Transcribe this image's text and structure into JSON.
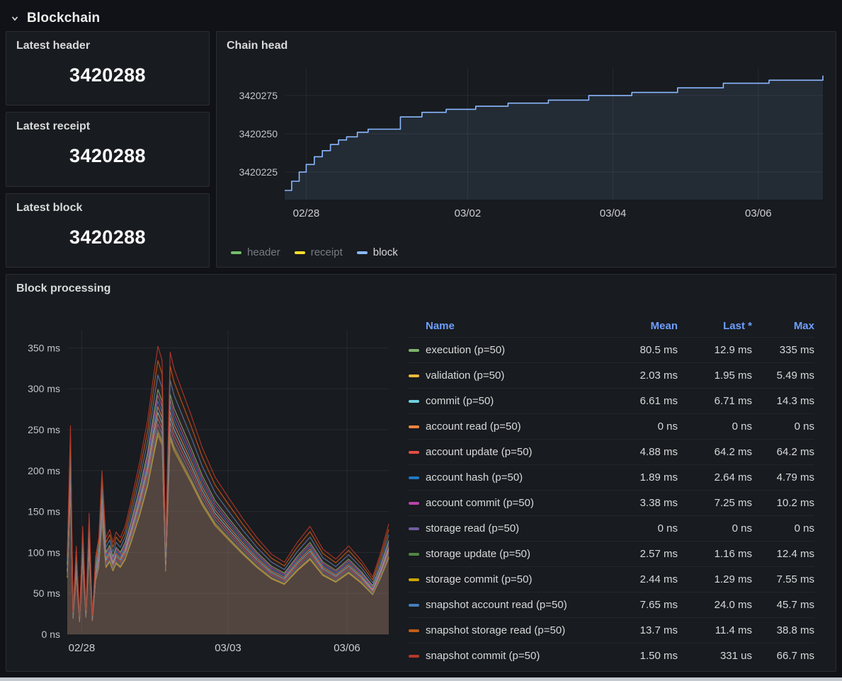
{
  "theme": {
    "background": "#111217",
    "panel_background": "#181b1f",
    "text_primary": "#d8d9da",
    "text_dim": "#767b83",
    "link_blue": "#6e9fff"
  },
  "section": {
    "title": "Blockchain",
    "collapse_icon": "chevron-down"
  },
  "stats": [
    {
      "title": "Latest header",
      "value": "3420288"
    },
    {
      "title": "Latest receipt",
      "value": "3420288"
    },
    {
      "title": "Latest block",
      "value": "3420288"
    }
  ],
  "chain_head": {
    "title": "Chain head",
    "legend": [
      {
        "label": "header",
        "color": "#73BF69",
        "dim": true
      },
      {
        "label": "receipt",
        "color": "#FADE2A",
        "dim": true
      },
      {
        "label": "block",
        "color": "#8AB8FF",
        "dim": false
      }
    ]
  },
  "block_processing": {
    "title": "Block processing",
    "table": {
      "columns": [
        "Name",
        "Mean",
        "Last *",
        "Max"
      ],
      "rows": [
        {
          "name": "execution (p=50)",
          "color": "#7EB26D",
          "mean": "80.5 ms",
          "last": "12.9 ms",
          "max": "335 ms"
        },
        {
          "name": "validation (p=50)",
          "color": "#EAB839",
          "mean": "2.03 ms",
          "last": "1.95 ms",
          "max": "5.49 ms"
        },
        {
          "name": "commit (p=50)",
          "color": "#6ED0E0",
          "mean": "6.61 ms",
          "last": "6.71 ms",
          "max": "14.3 ms"
        },
        {
          "name": "account read (p=50)",
          "color": "#EF843C",
          "mean": "0 ns",
          "last": "0 ns",
          "max": "0 ns"
        },
        {
          "name": "account update (p=50)",
          "color": "#E24D42",
          "mean": "4.88 ms",
          "last": "64.2 ms",
          "max": "64.2 ms"
        },
        {
          "name": "account hash (p=50)",
          "color": "#1F78C1",
          "mean": "1.89 ms",
          "last": "2.64 ms",
          "max": "4.79 ms"
        },
        {
          "name": "account commit (p=50)",
          "color": "#BA43A9",
          "mean": "3.38 ms",
          "last": "7.25 ms",
          "max": "10.2 ms"
        },
        {
          "name": "storage read (p=50)",
          "color": "#705DA0",
          "mean": "0 ns",
          "last": "0 ns",
          "max": "0 ns"
        },
        {
          "name": "storage update (p=50)",
          "color": "#508642",
          "mean": "2.57 ms",
          "last": "1.16 ms",
          "max": "12.4 ms"
        },
        {
          "name": "storage commit (p=50)",
          "color": "#CCA300",
          "mean": "2.44 ms",
          "last": "1.29 ms",
          "max": "7.55 ms"
        },
        {
          "name": "snapshot account read (p=50)",
          "color": "#447EBC",
          "mean": "7.65 ms",
          "last": "24.0 ms",
          "max": "45.7 ms"
        },
        {
          "name": "snapshot storage read (p=50)",
          "color": "#C15C17",
          "mean": "13.7 ms",
          "last": "11.4 ms",
          "max": "38.8 ms"
        },
        {
          "name": "snapshot commit (p=50)",
          "color": "#B5382C",
          "mean": "1.50 ms",
          "last": "331 us",
          "max": "66.7 ms"
        }
      ]
    }
  },
  "chart_data": [
    {
      "type": "line",
      "title": "Chain head",
      "x_axis": "time",
      "ylim": [
        3420207,
        3420293
      ],
      "grid": true,
      "legend_position": "bottom",
      "yticks": [
        {
          "label": "3420225",
          "value": 3420225
        },
        {
          "label": "3420250",
          "value": 3420250
        },
        {
          "label": "3420275",
          "value": 3420275
        }
      ],
      "xticks": [
        {
          "label": "02/28",
          "f": 0.04
        },
        {
          "label": "03/02",
          "f": 0.34
        },
        {
          "label": "03/04",
          "f": 0.61
        },
        {
          "label": "03/06",
          "f": 0.88
        }
      ],
      "series": [
        {
          "name": "block",
          "color": "#8AB8FF",
          "style": "step-after",
          "x": [
            0.0,
            0.013,
            0.027,
            0.04,
            0.055,
            0.07,
            0.085,
            0.1,
            0.115,
            0.135,
            0.155,
            0.18,
            0.215,
            0.255,
            0.3,
            0.355,
            0.415,
            0.49,
            0.565,
            0.645,
            0.73,
            0.815,
            0.9,
            1.0
          ],
          "y": [
            3420213,
            3420219,
            3420225,
            3420230,
            3420235,
            3420239,
            3420243,
            3420246,
            3420248,
            3420251,
            3420253,
            3420253,
            3420261,
            3420264,
            3420266,
            3420268,
            3420270,
            3420272,
            3420275,
            3420277,
            3420280,
            3420283,
            3420285,
            3420288
          ]
        }
      ],
      "note": "header and receipt series coincide with block series"
    },
    {
      "type": "line",
      "title": "Block processing",
      "x_axis": "time",
      "ylim": [
        0,
        372
      ],
      "grid": true,
      "yticks": [
        {
          "label": "0 ns",
          "value": 0
        },
        {
          "label": "50 ms",
          "value": 50
        },
        {
          "label": "100 ms",
          "value": 100
        },
        {
          "label": "150 ms",
          "value": 150
        },
        {
          "label": "200 ms",
          "value": 200
        },
        {
          "label": "250 ms",
          "value": 250
        },
        {
          "label": "300 ms",
          "value": 300
        },
        {
          "label": "350 ms",
          "value": 350
        }
      ],
      "xticks": [
        {
          "label": "02/28",
          "f": 0.045
        },
        {
          "label": "03/03",
          "f": 0.5
        },
        {
          "label": "03/06",
          "f": 0.87
        }
      ],
      "envelope_x": [
        0.0,
        0.01,
        0.018,
        0.028,
        0.038,
        0.048,
        0.058,
        0.068,
        0.078,
        0.088,
        0.098,
        0.108,
        0.12,
        0.132,
        0.142,
        0.152,
        0.165,
        0.18,
        0.2,
        0.225,
        0.25,
        0.27,
        0.282,
        0.295,
        0.306,
        0.32,
        0.332,
        0.355,
        0.385,
        0.42,
        0.46,
        0.5,
        0.545,
        0.59,
        0.635,
        0.675,
        0.715,
        0.755,
        0.795,
        0.835,
        0.875,
        0.915,
        0.95,
        0.975,
        1.0
      ],
      "envelope_y_ms": [
        100,
        255,
        28,
        108,
        22,
        132,
        30,
        148,
        24,
        95,
        118,
        200,
        118,
        128,
        112,
        125,
        118,
        132,
        165,
        210,
        262,
        320,
        352,
        335,
        112,
        345,
        325,
        300,
        268,
        228,
        192,
        168,
        142,
        118,
        98,
        88,
        112,
        132,
        104,
        92,
        108,
        90,
        70,
        100,
        135
      ],
      "series": [
        {
          "name": "snapshot commit (p=50)",
          "color": "#B5382C",
          "scale": 1.0
        },
        {
          "name": "snapshot storage read (p=50)",
          "color": "#C15C17",
          "scale": 0.95
        },
        {
          "name": "snapshot account read (p=50)",
          "color": "#447EBC",
          "scale": 0.9
        },
        {
          "name": "execution (p=50)",
          "color": "#7EB26D",
          "scale": 0.85
        },
        {
          "name": "account commit (p=50)",
          "color": "#BA43A9",
          "scale": 0.83
        },
        {
          "name": "account hash (p=50)",
          "color": "#1F78C1",
          "scale": 0.81
        },
        {
          "name": "account read (p=50)",
          "color": "#EF843C",
          "scale": 0.79
        },
        {
          "name": "commit (p=50)",
          "color": "#6ED0E0",
          "scale": 0.77
        },
        {
          "name": "account update (p=50)",
          "color": "#E24D42",
          "scale": 0.75
        },
        {
          "name": "storage read (p=50)",
          "color": "#705DA0",
          "scale": 0.73
        },
        {
          "name": "storage update (p=50)",
          "color": "#508642",
          "scale": 0.71
        },
        {
          "name": "validation (p=50)",
          "color": "#EAB839",
          "scale": 0.7
        },
        {
          "name": "storage commit (p=50)",
          "color": "#CCA300",
          "scale": 0.69
        }
      ],
      "note": "13 overlapping jagged series; values approximated as scale x envelope"
    }
  ]
}
